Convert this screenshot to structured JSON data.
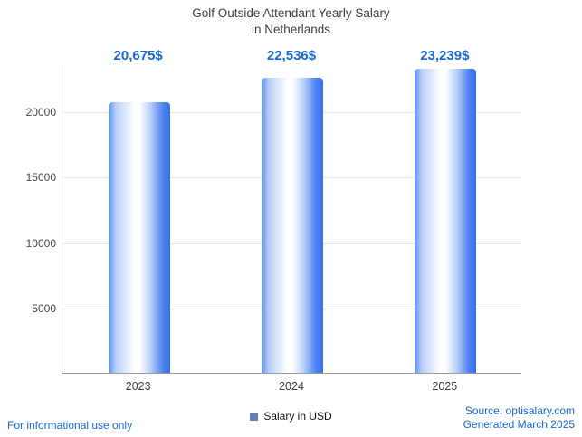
{
  "title": {
    "line1": "Golf Outside Attendant Yearly Salary",
    "line2": "in Netherlands"
  },
  "chart_data": {
    "type": "bar",
    "title": "Golf Outside Attendant Yearly Salary in Netherlands",
    "categories": [
      "2023",
      "2024",
      "2025"
    ],
    "values": [
      20675,
      22536,
      23239
    ],
    "value_labels": [
      "20,675$",
      "22,536$",
      "23,239$"
    ],
    "xlabel": "",
    "ylabel": "",
    "ylim": [
      0,
      23600
    ],
    "yticks": [
      5000,
      10000,
      15000,
      20000
    ],
    "grid": true,
    "legend_position": "bottom-center",
    "legend": [
      {
        "label": "Salary in USD",
        "color": "#667eb4"
      }
    ],
    "bar_gradient": [
      "#5e93ee",
      "#ffffff",
      "#3570ee"
    ]
  },
  "footer": {
    "disclaimer": "For informational use only",
    "source": "Source: optisalary.com",
    "generated": "Generated March 2025"
  },
  "colors": {
    "accent_blue": "#1667d2",
    "title_text": "#3d3d3d",
    "axis_line": "#9a9a9a",
    "gridline": "#e7e7e7"
  }
}
